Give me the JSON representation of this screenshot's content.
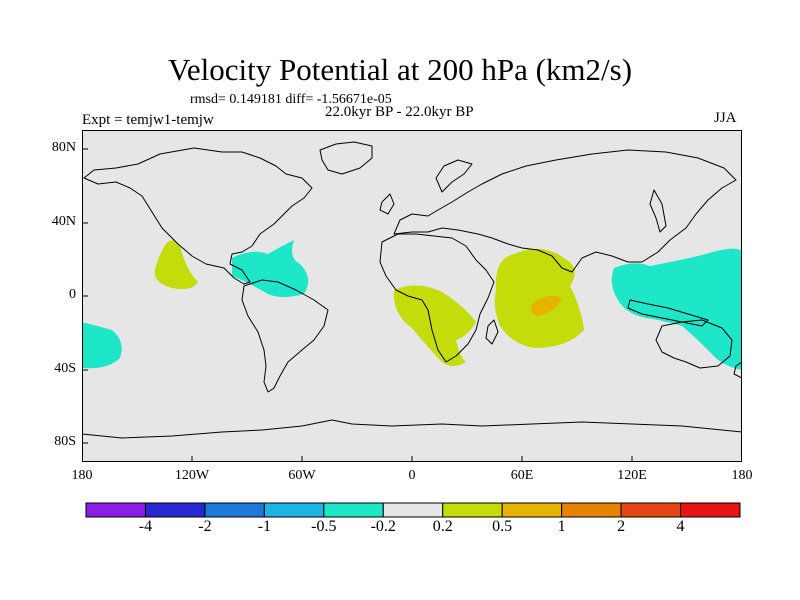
{
  "title": "Velocity Potential at 200 hPa (km2/s)",
  "stats": "rmsd= 0.149181 diff= -1.56671e-05",
  "experiment": "Expt = temjw1-temjw",
  "period": "22.0kyr BP - 22.0kyr BP",
  "season": "JJA",
  "axes": {
    "lat_ticks": [
      "80N",
      "40N",
      "0",
      "40S",
      "80S"
    ],
    "lon_ticks": [
      "180",
      "120W",
      "60W",
      "0",
      "60E",
      "120E",
      "180"
    ]
  },
  "colorbar": {
    "colors": [
      "#8a1ee6",
      "#2828d2",
      "#1e78dc",
      "#1eb4e6",
      "#1ee6c8",
      "#e6e6e6",
      "#c3dc0a",
      "#e6b400",
      "#e68200",
      "#e64614",
      "#e61414"
    ],
    "labels": [
      "-4",
      "-2",
      "-1",
      "-0.5",
      "-0.2",
      "0.2",
      "0.5",
      "1",
      "2",
      "4"
    ]
  },
  "colors": {
    "map_background": "#e6e6e6",
    "negative_anomaly": "#1ee6c8",
    "positive_anomaly": "#c3dc0a",
    "strong_positive": "#e6b400"
  }
}
